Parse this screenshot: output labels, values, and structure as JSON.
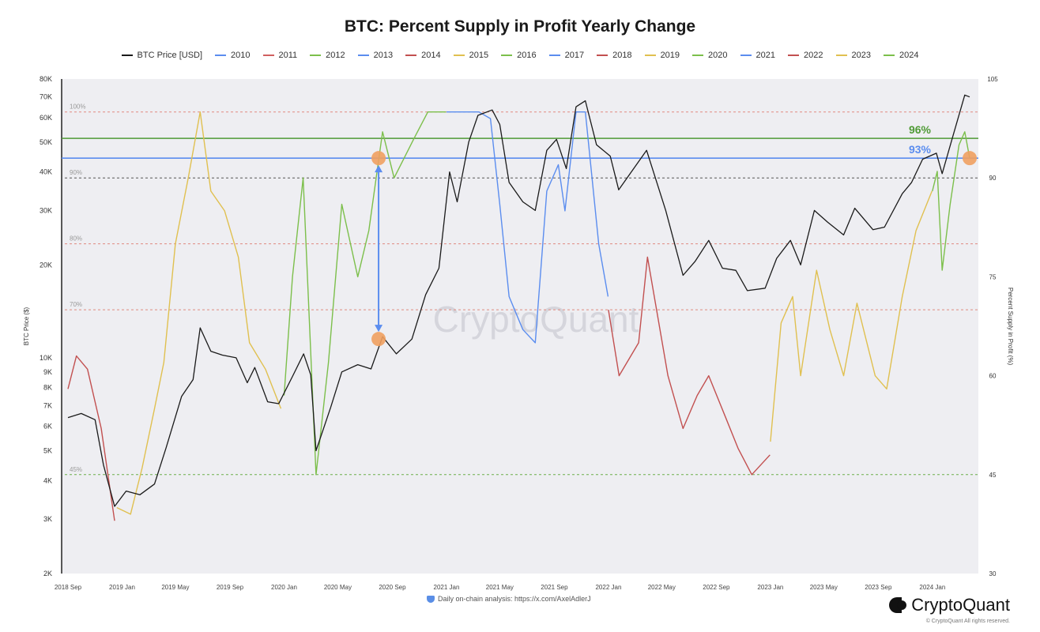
{
  "title": "BTC: Percent Supply in Profit Yearly Change",
  "legend": [
    {
      "label": "BTC Price [USD]",
      "color": "#1a1a1a"
    },
    {
      "label": "2010",
      "color": "#5b8def"
    },
    {
      "label": "2011",
      "color": "#d06060"
    },
    {
      "label": "2012",
      "color": "#7cbf4b"
    },
    {
      "label": "2013",
      "color": "#5b8def"
    },
    {
      "label": "2014",
      "color": "#c25050"
    },
    {
      "label": "2015",
      "color": "#e0c050"
    },
    {
      "label": "2016",
      "color": "#7cbf4b"
    },
    {
      "label": "2017",
      "color": "#5b8def"
    },
    {
      "label": "2018",
      "color": "#c25050"
    },
    {
      "label": "2019",
      "color": "#e0c050"
    },
    {
      "label": "2020",
      "color": "#7cbf4b"
    },
    {
      "label": "2021",
      "color": "#5b8def"
    },
    {
      "label": "2022",
      "color": "#c25050"
    },
    {
      "label": "2023",
      "color": "#e0c050"
    },
    {
      "label": "2024",
      "color": "#7cbf4b"
    }
  ],
  "footer": {
    "note": "Daily on-chain analysis: https://x.com/AxelAdlerJ",
    "brand": "CryptoQuant",
    "copyright": "© CryptoQuant All rights reserved.",
    "watermark": "CryptoQuant"
  },
  "chart_data": {
    "type": "line",
    "title": "BTC: Percent Supply in Profit Yearly Change",
    "x_range": [
      "2018-09-01",
      "2024-04-10"
    ],
    "x_ticks": [
      "2018 Sep",
      "2019 Jan",
      "2019 May",
      "2019 Sep",
      "2020 Jan",
      "2020 May",
      "2020 Sep",
      "2021 Jan",
      "2021 May",
      "2021 Sep",
      "2022 Jan",
      "2022 May",
      "2022 Sep",
      "2023 Jan",
      "2023 May",
      "2023 Sep",
      "2024 Jan"
    ],
    "x_tick_dates": [
      "2018-09-01",
      "2019-01-01",
      "2019-05-01",
      "2019-09-01",
      "2020-01-01",
      "2020-05-01",
      "2020-09-01",
      "2021-01-01",
      "2021-05-01",
      "2021-09-01",
      "2022-01-01",
      "2022-05-01",
      "2022-09-01",
      "2023-01-01",
      "2023-05-01",
      "2023-09-01",
      "2024-01-01"
    ],
    "y_left": {
      "label": "BTC Price ($)",
      "scale": "log",
      "range": [
        2000,
        80000
      ],
      "ticks": [
        {
          "value": 2000,
          "label": "2K"
        },
        {
          "value": 3000,
          "label": "3K"
        },
        {
          "value": 4000,
          "label": "4K"
        },
        {
          "value": 5000,
          "label": "5K"
        },
        {
          "value": 6000,
          "label": "6K"
        },
        {
          "value": 7000,
          "label": "7K"
        },
        {
          "value": 8000,
          "label": "8K"
        },
        {
          "value": 9000,
          "label": "9K"
        },
        {
          "value": 10000,
          "label": "10K"
        },
        {
          "value": 20000,
          "label": "20K"
        },
        {
          "value": 30000,
          "label": "30K"
        },
        {
          "value": 40000,
          "label": "40K"
        },
        {
          "value": 50000,
          "label": "50K"
        },
        {
          "value": 60000,
          "label": "60K"
        },
        {
          "value": 70000,
          "label": "70K"
        },
        {
          "value": 80000,
          "label": "80K"
        }
      ]
    },
    "y_right": {
      "label": "Percent Supply in Profit (%)",
      "scale": "linear",
      "range": [
        30,
        105
      ],
      "ticks": [
        30,
        45,
        60,
        75,
        90,
        105
      ]
    },
    "reference_lines": [
      {
        "value": 100,
        "label": "100%",
        "color": "#e08a80"
      },
      {
        "value": 90,
        "label": "90%",
        "color": "#555555"
      },
      {
        "value": 80,
        "label": "80%",
        "color": "#e08a80"
      },
      {
        "value": 70,
        "label": "70%",
        "color": "#e08a80"
      },
      {
        "value": 45,
        "label": "45%",
        "color": "#6cae4a"
      }
    ],
    "highlight_lines": [
      {
        "value": 96,
        "label": "96%",
        "color": "#4f9a36"
      },
      {
        "value": 93,
        "label": "93%",
        "color": "#5b8def"
      }
    ],
    "btc_price": {
      "name": "BTC Price [USD]",
      "color": "#1a1a1a",
      "points": [
        [
          "2018-09-01",
          6400
        ],
        [
          "2018-10-01",
          6600
        ],
        [
          "2018-11-01",
          6300
        ],
        [
          "2018-11-20",
          4500
        ],
        [
          "2018-12-15",
          3300
        ],
        [
          "2019-01-10",
          3700
        ],
        [
          "2019-02-10",
          3600
        ],
        [
          "2019-03-15",
          3900
        ],
        [
          "2019-04-10",
          5100
        ],
        [
          "2019-05-15",
          7500
        ],
        [
          "2019-06-10",
          8500
        ],
        [
          "2019-06-26",
          12500
        ],
        [
          "2019-07-20",
          10500
        ],
        [
          "2019-08-15",
          10200
        ],
        [
          "2019-09-15",
          10000
        ],
        [
          "2019-10-10",
          8300
        ],
        [
          "2019-10-27",
          9300
        ],
        [
          "2019-11-25",
          7200
        ],
        [
          "2019-12-20",
          7100
        ],
        [
          "2020-01-20",
          8700
        ],
        [
          "2020-02-14",
          10300
        ],
        [
          "2020-03-01",
          8800
        ],
        [
          "2020-03-13",
          5000
        ],
        [
          "2020-04-15",
          6900
        ],
        [
          "2020-05-10",
          9000
        ],
        [
          "2020-06-15",
          9500
        ],
        [
          "2020-07-15",
          9200
        ],
        [
          "2020-08-10",
          11700
        ],
        [
          "2020-09-10",
          10300
        ],
        [
          "2020-10-15",
          11500
        ],
        [
          "2020-11-15",
          16000
        ],
        [
          "2020-12-15",
          19500
        ],
        [
          "2021-01-08",
          40000
        ],
        [
          "2021-01-25",
          32000
        ],
        [
          "2021-02-20",
          50000
        ],
        [
          "2021-03-13",
          61000
        ],
        [
          "2021-04-14",
          63500
        ],
        [
          "2021-05-01",
          57000
        ],
        [
          "2021-05-22",
          37000
        ],
        [
          "2021-06-22",
          32000
        ],
        [
          "2021-07-20",
          30000
        ],
        [
          "2021-08-15",
          47000
        ],
        [
          "2021-09-06",
          51000
        ],
        [
          "2021-09-28",
          41000
        ],
        [
          "2021-10-20",
          65000
        ],
        [
          "2021-11-10",
          68000
        ],
        [
          "2021-12-05",
          49000
        ],
        [
          "2022-01-05",
          45000
        ],
        [
          "2022-01-24",
          35000
        ],
        [
          "2022-03-28",
          47000
        ],
        [
          "2022-05-10",
          30000
        ],
        [
          "2022-06-18",
          18500
        ],
        [
          "2022-07-15",
          20500
        ],
        [
          "2022-08-15",
          24000
        ],
        [
          "2022-09-15",
          19500
        ],
        [
          "2022-10-15",
          19200
        ],
        [
          "2022-11-10",
          16500
        ],
        [
          "2022-12-20",
          16800
        ],
        [
          "2023-01-15",
          21000
        ],
        [
          "2023-02-15",
          24000
        ],
        [
          "2023-03-10",
          20000
        ],
        [
          "2023-04-10",
          30000
        ],
        [
          "2023-05-10",
          27500
        ],
        [
          "2023-06-15",
          25000
        ],
        [
          "2023-07-10",
          30500
        ],
        [
          "2023-08-20",
          26000
        ],
        [
          "2023-09-15",
          26500
        ],
        [
          "2023-10-25",
          34000
        ],
        [
          "2023-11-15",
          37000
        ],
        [
          "2023-12-10",
          44000
        ],
        [
          "2024-01-10",
          46000
        ],
        [
          "2024-01-23",
          39500
        ],
        [
          "2024-02-15",
          51500
        ],
        [
          "2024-03-14",
          71000
        ],
        [
          "2024-03-25",
          70000
        ]
      ]
    },
    "supply_in_profit": {
      "name": "Percent Supply in Profit",
      "segments": [
        {
          "year": "2014",
          "color": "#c25050",
          "points": [
            [
              "2018-09-01",
              58
            ],
            [
              "2018-09-20",
              63
            ],
            [
              "2018-10-15",
              61
            ],
            [
              "2018-11-15",
              52
            ],
            [
              "2018-12-15",
              38
            ]
          ]
        },
        {
          "year": "2015",
          "color": "#e0c050",
          "points": [
            [
              "2018-12-20",
              40
            ],
            [
              "2019-01-20",
              39
            ],
            [
              "2019-02-15",
              46
            ],
            [
              "2019-03-15",
              55
            ],
            [
              "2019-04-05",
              62
            ],
            [
              "2019-05-01",
              80
            ],
            [
              "2019-05-30",
              90
            ],
            [
              "2019-06-26",
              100
            ],
            [
              "2019-07-20",
              88
            ],
            [
              "2019-08-20",
              85
            ],
            [
              "2019-09-20",
              78
            ],
            [
              "2019-10-15",
              65
            ],
            [
              "2019-11-20",
              61
            ],
            [
              "2019-12-25",
              55
            ]
          ]
        },
        {
          "year": "2016",
          "color": "#7cbf4b",
          "points": [
            [
              "2020-01-01",
              57
            ],
            [
              "2020-01-20",
              75
            ],
            [
              "2020-02-13",
              90
            ],
            [
              "2020-03-13",
              45
            ],
            [
              "2020-04-10",
              62
            ],
            [
              "2020-05-10",
              86
            ],
            [
              "2020-06-15",
              75
            ],
            [
              "2020-07-10",
              82
            ],
            [
              "2020-08-10",
              97
            ],
            [
              "2020-09-05",
              90
            ],
            [
              "2020-10-20",
              96
            ],
            [
              "2020-11-20",
              100
            ],
            [
              "2020-12-31",
              100
            ]
          ]
        },
        {
          "year": "2017",
          "color": "#5b8def",
          "points": [
            [
              "2021-01-01",
              100
            ],
            [
              "2021-02-10",
              100
            ],
            [
              "2021-03-15",
              100
            ],
            [
              "2021-04-10",
              99
            ],
            [
              "2021-05-01",
              86
            ],
            [
              "2021-05-22",
              72
            ],
            [
              "2021-06-22",
              67
            ],
            [
              "2021-07-20",
              65
            ],
            [
              "2021-08-15",
              88
            ],
            [
              "2021-09-10",
              92
            ],
            [
              "2021-09-25",
              85
            ],
            [
              "2021-10-20",
              100
            ],
            [
              "2021-11-10",
              100
            ],
            [
              "2021-12-10",
              80
            ],
            [
              "2021-12-31",
              72
            ]
          ]
        },
        {
          "year": "2018",
          "color": "#c25050",
          "points": [
            [
              "2022-01-01",
              70
            ],
            [
              "2022-01-25",
              60
            ],
            [
              "2022-03-10",
              65
            ],
            [
              "2022-03-30",
              78
            ],
            [
              "2022-05-15",
              60
            ],
            [
              "2022-06-18",
              52
            ],
            [
              "2022-07-20",
              57
            ],
            [
              "2022-08-15",
              60
            ],
            [
              "2022-09-20",
              54
            ],
            [
              "2022-10-20",
              49
            ],
            [
              "2022-11-20",
              45
            ],
            [
              "2022-12-31",
              48
            ]
          ]
        },
        {
          "year": "2019",
          "color": "#e0c050",
          "points": [
            [
              "2023-01-01",
              50
            ],
            [
              "2023-01-25",
              68
            ],
            [
              "2023-02-20",
              72
            ],
            [
              "2023-03-10",
              60
            ],
            [
              "2023-04-15",
              76
            ],
            [
              "2023-05-15",
              67
            ],
            [
              "2023-06-15",
              60
            ],
            [
              "2023-07-15",
              71
            ],
            [
              "2023-08-25",
              60
            ],
            [
              "2023-09-20",
              58
            ],
            [
              "2023-10-25",
              72
            ],
            [
              "2023-11-25",
              82
            ],
            [
              "2023-12-31",
              88
            ]
          ]
        },
        {
          "year": "2020",
          "color": "#7cbf4b",
          "points": [
            [
              "2024-01-01",
              88
            ],
            [
              "2024-01-12",
              91
            ],
            [
              "2024-01-23",
              76
            ],
            [
              "2024-02-10",
              86
            ],
            [
              "2024-03-01",
              95
            ],
            [
              "2024-03-14",
              97
            ],
            [
              "2024-03-25",
              93
            ]
          ]
        }
      ]
    },
    "annotations": {
      "arrow": {
        "from": [
          "2020-08-01",
          11500
        ],
        "to_percent": 93,
        "color": "#5b8def"
      },
      "markers": [
        {
          "date": "2020-08-01",
          "axis": "price",
          "value": 11500,
          "color": "#f0a060"
        },
        {
          "date": "2020-08-01",
          "axis": "percent",
          "value": 93,
          "color": "#f0a060"
        },
        {
          "date": "2024-03-25",
          "axis": "percent",
          "value": 93,
          "color": "#f0a060"
        }
      ]
    }
  }
}
